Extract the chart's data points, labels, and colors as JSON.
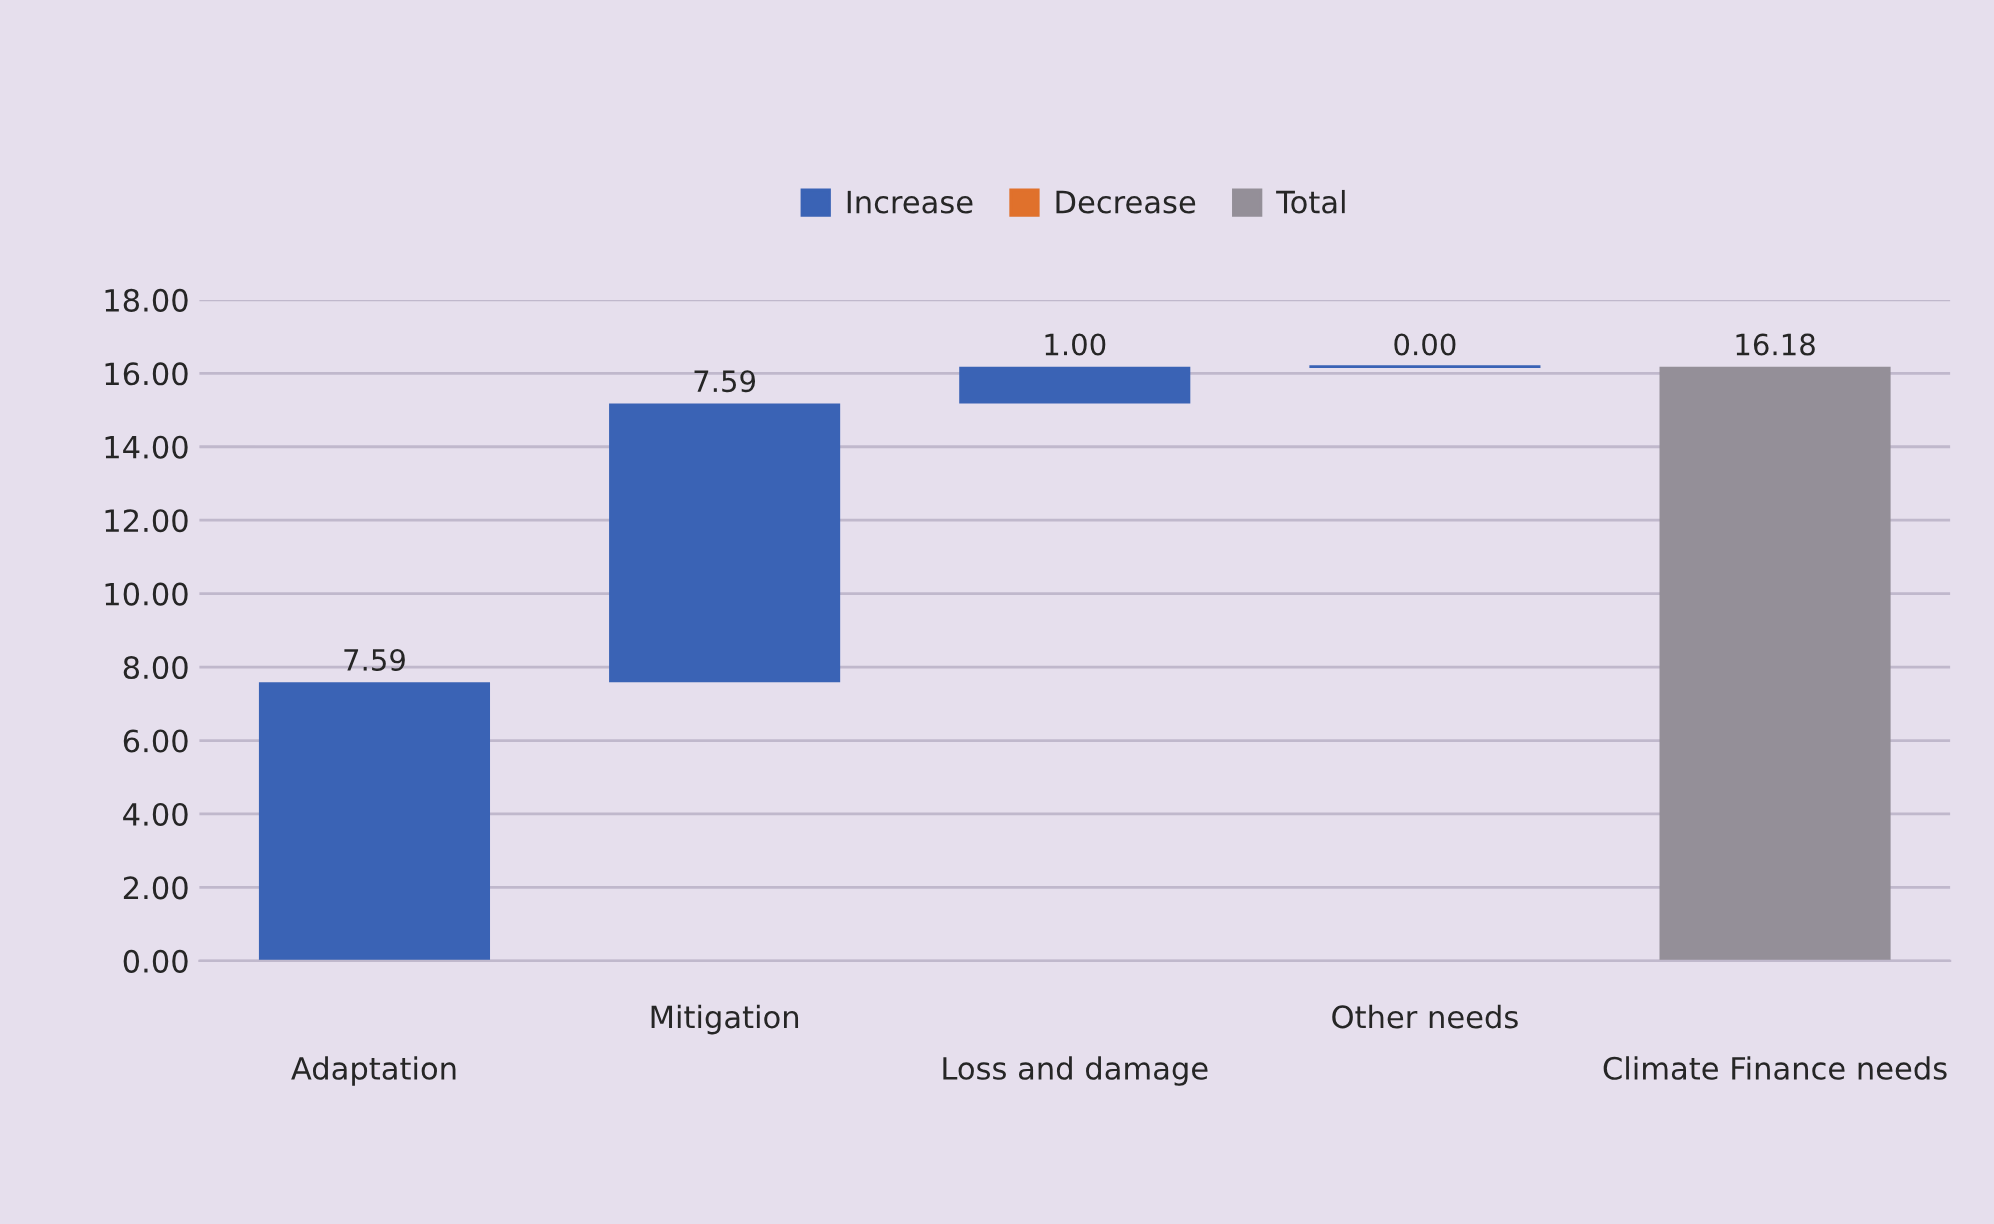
{
  "chart_data": {
    "type": "bar",
    "categories": [
      "Adaptation",
      "Mitigation",
      "Loss and damage",
      "Other needs",
      "Climate Finance needs"
    ],
    "series": [
      {
        "name": "Increase",
        "color": "#3a63b5",
        "values": [
          7.59,
          7.59,
          1.0,
          0.0,
          null
        ],
        "base": [
          0,
          7.59,
          15.18,
          16.18,
          null
        ],
        "value_labels": [
          "7.59",
          "7.59",
          "1.00",
          "0.00",
          null
        ]
      },
      {
        "name": "Decrease",
        "color": "#e0712c",
        "values": [
          null,
          null,
          null,
          null,
          null
        ]
      },
      {
        "name": "Total",
        "color": "#948f98",
        "values": [
          null,
          null,
          null,
          null,
          16.18
        ],
        "base": [
          null,
          null,
          null,
          null,
          0
        ],
        "value_labels": [
          null,
          null,
          null,
          null,
          "16.18"
        ]
      }
    ],
    "ylim": [
      0,
      18
    ],
    "yticks": [
      {
        "value": 0,
        "label": "0.00"
      },
      {
        "value": 2,
        "label": "2.00"
      },
      {
        "value": 4,
        "label": "4.00"
      },
      {
        "value": 6,
        "label": "6.00"
      },
      {
        "value": 8,
        "label": "8.00"
      },
      {
        "value": 10,
        "label": "10.00"
      },
      {
        "value": 12,
        "label": "12.00"
      },
      {
        "value": 14,
        "label": "14.00"
      },
      {
        "value": 16,
        "label": "16.00"
      },
      {
        "value": 18,
        "label": "18.00"
      }
    ],
    "grid": "y",
    "legend": "top"
  }
}
